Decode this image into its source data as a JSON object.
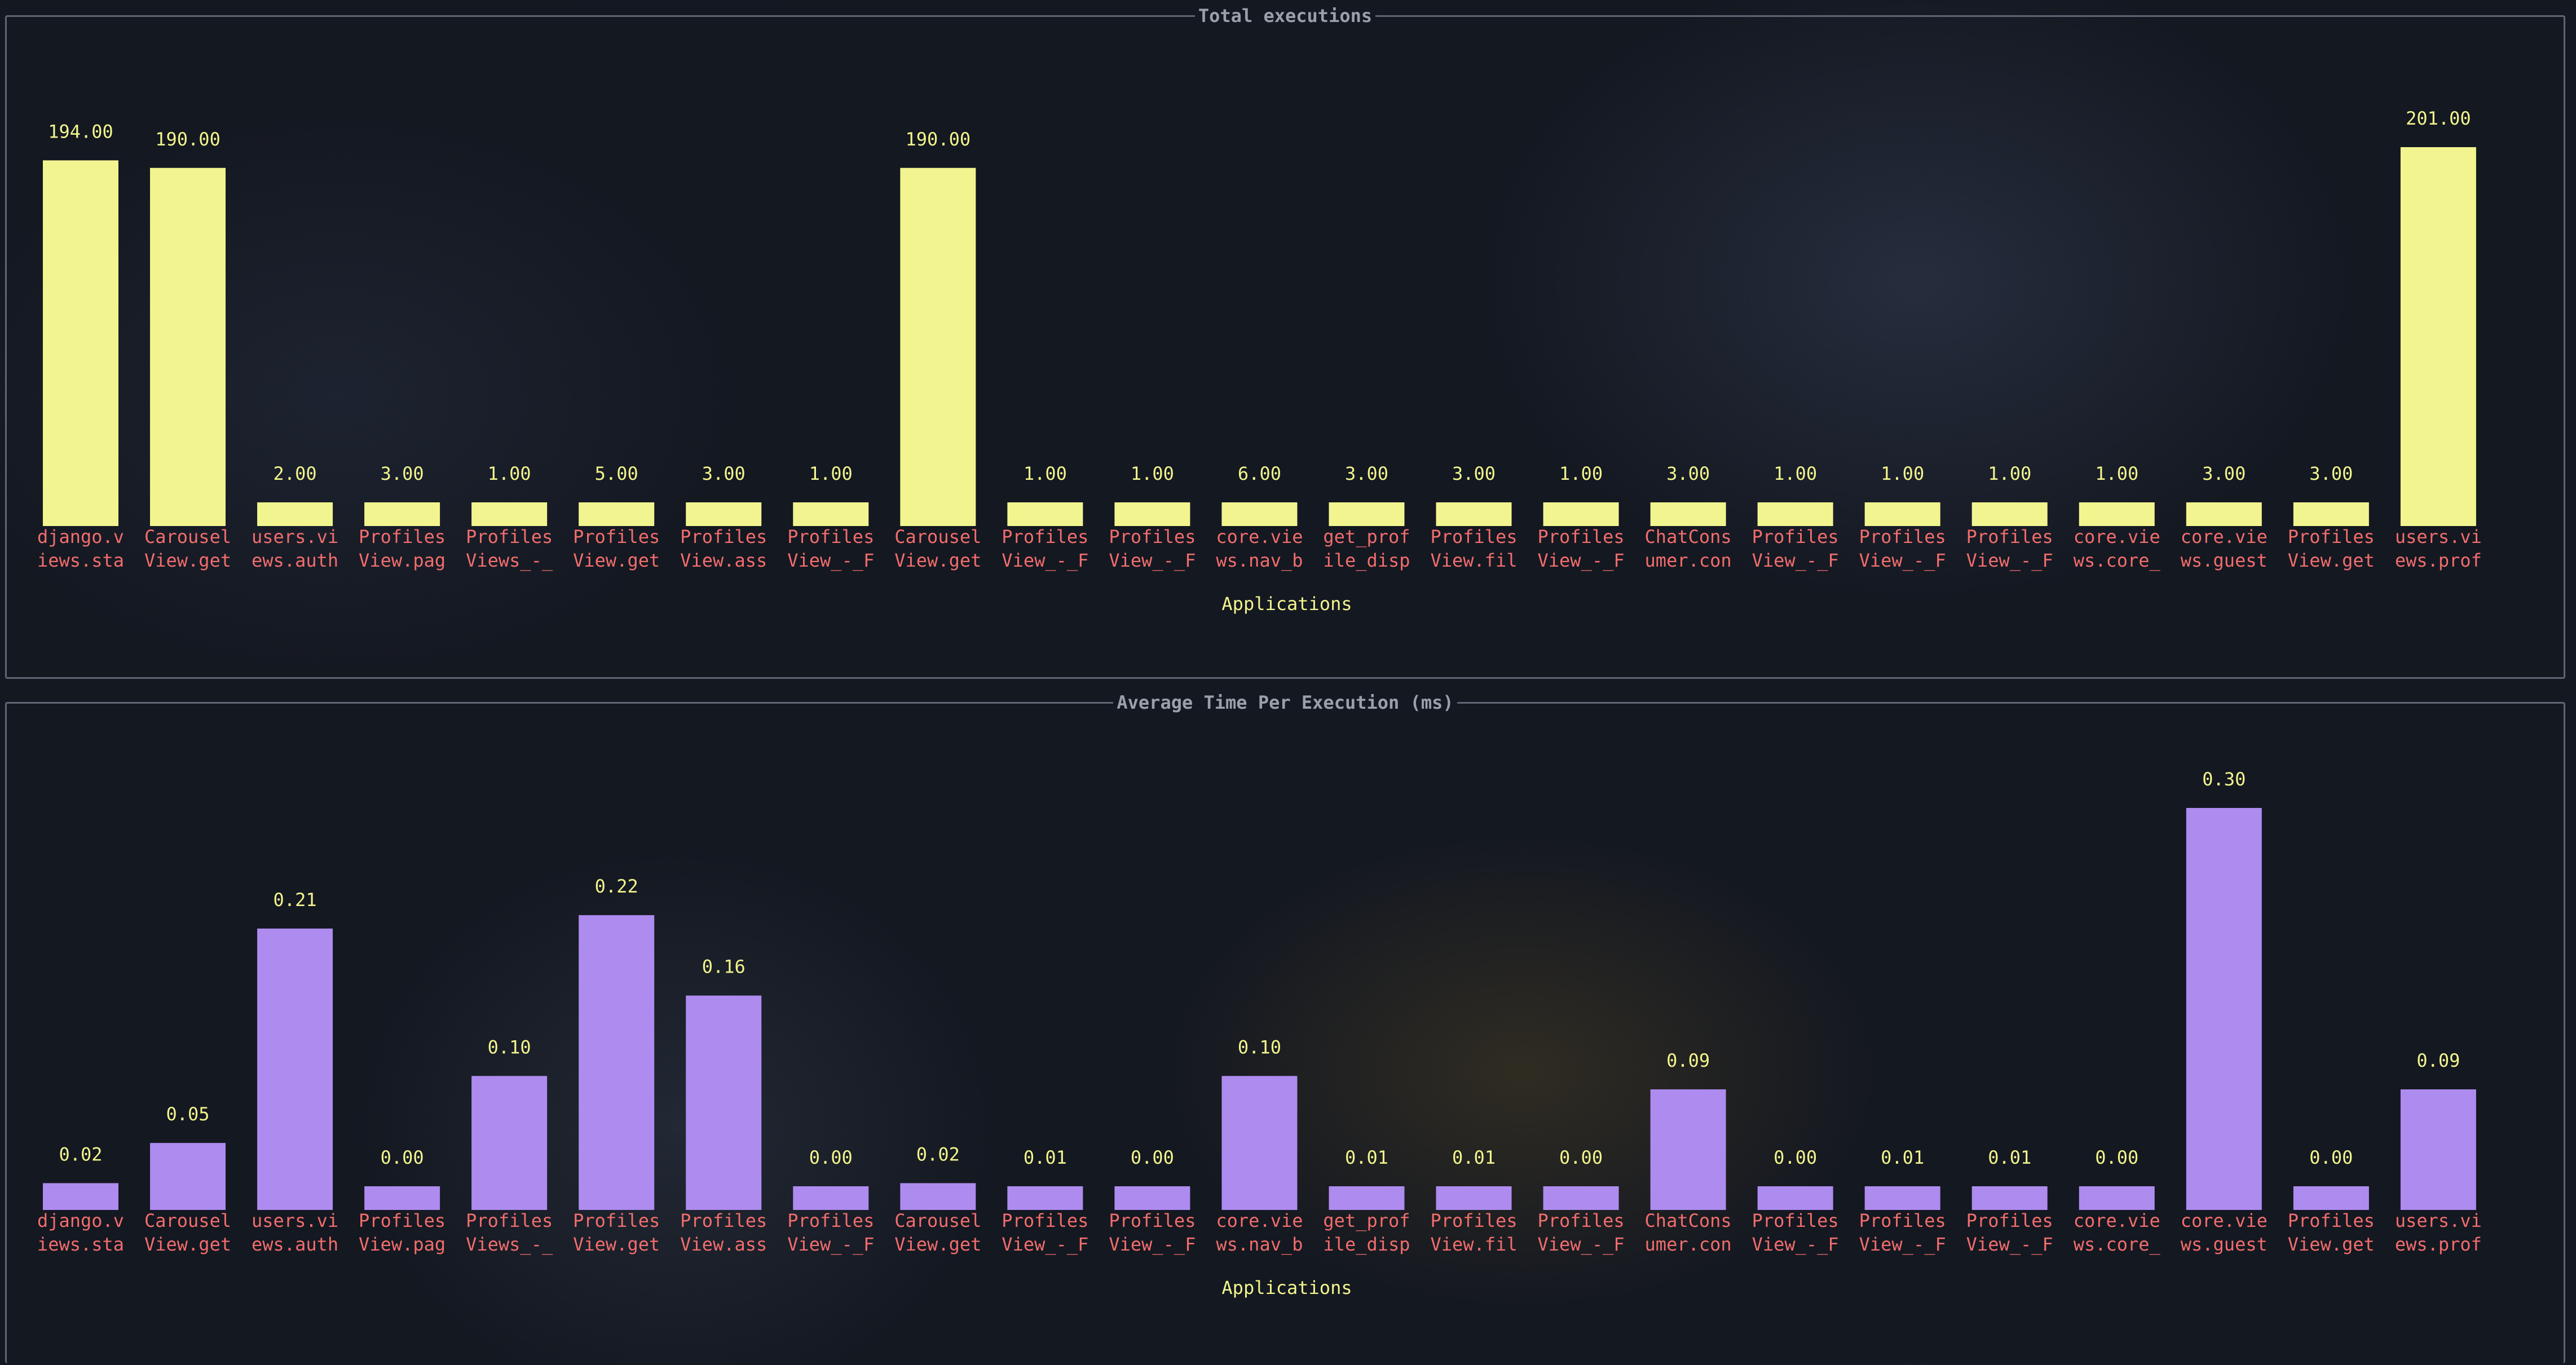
{
  "chart_data": [
    {
      "type": "bar",
      "title": "Total executions",
      "xlabel": "Applications",
      "ylabel": "",
      "ylim": [
        0,
        201
      ],
      "color": "#f2f58f",
      "label_color": "#f3f58d",
      "category_color": "#f26d6d",
      "categories": [
        [
          "django.v",
          "iews.sta"
        ],
        [
          "Carousel",
          "View.get"
        ],
        [
          "users.vi",
          "ews.auth"
        ],
        [
          "Profiles",
          "View.pag"
        ],
        [
          "Profiles",
          "Views_-_"
        ],
        [
          "Profiles",
          "View.get"
        ],
        [
          "Profiles",
          "View.ass"
        ],
        [
          "Profiles",
          "View_-_F"
        ],
        [
          "Carousel",
          "View.get"
        ],
        [
          "Profiles",
          "View_-_F"
        ],
        [
          "Profiles",
          "View_-_F"
        ],
        [
          "core.vie",
          "ws.nav_b"
        ],
        [
          "get_prof",
          "ile_disp"
        ],
        [
          "Profiles",
          "View.fil"
        ],
        [
          "Profiles",
          "View_-_F"
        ],
        [
          "ChatCons",
          "umer.con"
        ],
        [
          "Profiles",
          "View_-_F"
        ],
        [
          "Profiles",
          "View_-_F"
        ],
        [
          "Profiles",
          "View_-_F"
        ],
        [
          "core.vie",
          "ws.core_"
        ],
        [
          "core.vie",
          "ws.guest"
        ],
        [
          "Profiles",
          "View.get"
        ],
        [
          "users.vi",
          "ews.prof"
        ]
      ],
      "values": [
        194.0,
        190.0,
        2.0,
        3.0,
        1.0,
        5.0,
        3.0,
        1.0,
        190.0,
        1.0,
        1.0,
        6.0,
        3.0,
        3.0,
        1.0,
        3.0,
        1.0,
        1.0,
        1.0,
        1.0,
        3.0,
        3.0,
        201.0
      ],
      "value_labels": [
        "194.00",
        "190.00",
        "2.00",
        "3.00",
        "1.00",
        "5.00",
        "3.00",
        "1.00",
        "190.00",
        "1.00",
        "1.00",
        "6.00",
        "3.00",
        "3.00",
        "1.00",
        "3.00",
        "1.00",
        "1.00",
        "1.00",
        "1.00",
        "3.00",
        "3.00",
        "201.00"
      ]
    },
    {
      "type": "bar",
      "title": "Average Time Per Execution (ms)",
      "xlabel": "Applications",
      "ylabel": "",
      "ylim": [
        0,
        0.3
      ],
      "color": "#ae8bef",
      "label_color": "#f3f58d",
      "category_color": "#f26d6d",
      "categories": [
        [
          "django.v",
          "iews.sta"
        ],
        [
          "Carousel",
          "View.get"
        ],
        [
          "users.vi",
          "ews.auth"
        ],
        [
          "Profiles",
          "View.pag"
        ],
        [
          "Profiles",
          "Views_-_"
        ],
        [
          "Profiles",
          "View.get"
        ],
        [
          "Profiles",
          "View.ass"
        ],
        [
          "Profiles",
          "View_-_F"
        ],
        [
          "Carousel",
          "View.get"
        ],
        [
          "Profiles",
          "View_-_F"
        ],
        [
          "Profiles",
          "View_-_F"
        ],
        [
          "core.vie",
          "ws.nav_b"
        ],
        [
          "get_prof",
          "ile_disp"
        ],
        [
          "Profiles",
          "View.fil"
        ],
        [
          "Profiles",
          "View_-_F"
        ],
        [
          "ChatCons",
          "umer.con"
        ],
        [
          "Profiles",
          "View_-_F"
        ],
        [
          "Profiles",
          "View_-_F"
        ],
        [
          "Profiles",
          "View_-_F"
        ],
        [
          "core.vie",
          "ws.core_"
        ],
        [
          "core.vie",
          "ws.guest"
        ],
        [
          "Profiles",
          "View.get"
        ],
        [
          "users.vi",
          "ews.prof"
        ]
      ],
      "values": [
        0.02,
        0.05,
        0.21,
        0.0,
        0.1,
        0.22,
        0.16,
        0.0,
        0.02,
        0.01,
        0.0,
        0.1,
        0.01,
        0.01,
        0.0,
        0.09,
        0.0,
        0.01,
        0.01,
        0.0,
        0.3,
        0.0,
        0.09
      ],
      "value_labels": [
        "0.02",
        "0.05",
        "0.21",
        "0.00",
        "0.10",
        "0.22",
        "0.16",
        "0.00",
        "0.02",
        "0.01",
        "0.00",
        "0.10",
        "0.01",
        "0.01",
        "0.00",
        "0.09",
        "0.00",
        "0.01",
        "0.01",
        "0.00",
        "0.30",
        "0.00",
        "0.09"
      ]
    }
  ]
}
